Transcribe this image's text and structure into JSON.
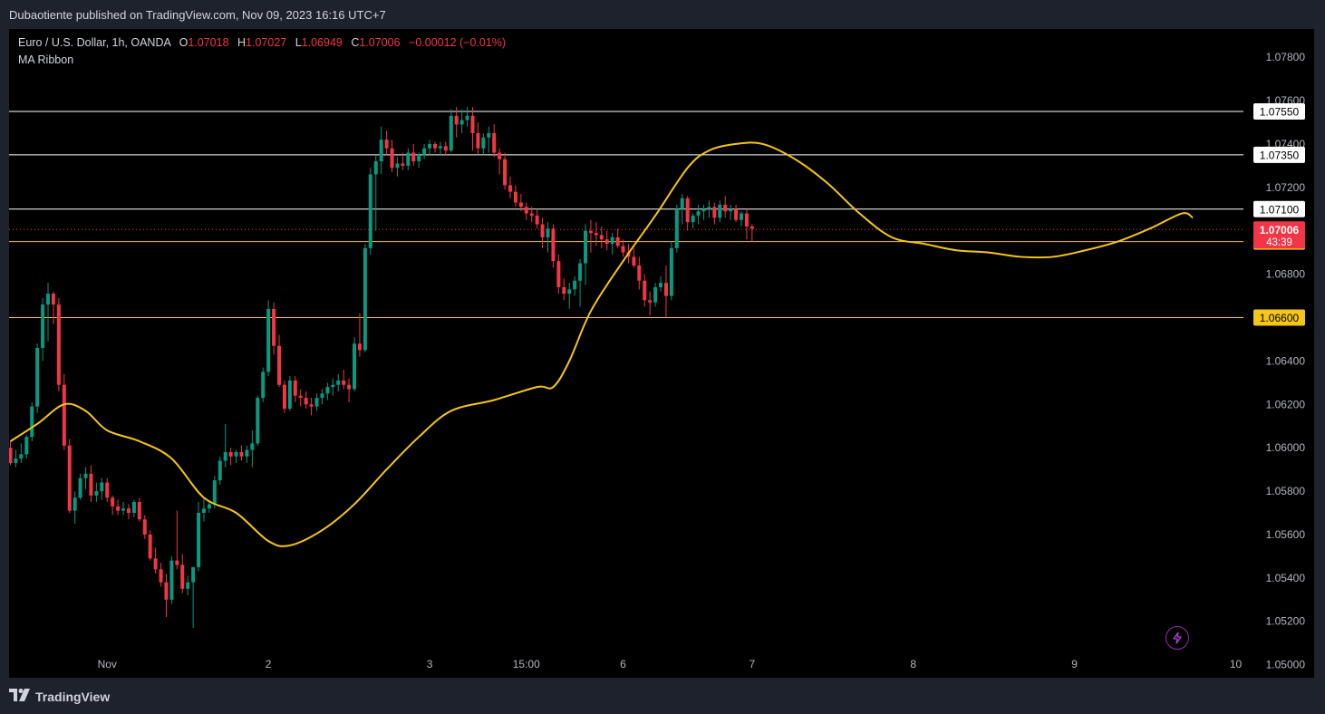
{
  "header": {
    "publisher": "Dubaotiente published on TradingView.com, Nov 09, 2023 16:16 UTC+7"
  },
  "legend": {
    "symbol": "Euro / U.S. Dollar, 1h, OANDA",
    "o_label": "O",
    "o_value": "1.07018",
    "h_label": "H",
    "h_value": "1.07027",
    "l_label": "L",
    "l_value": "1.06949",
    "c_label": "C",
    "c_value": "1.07006",
    "change": "−0.00012 (−0.01%)",
    "indicator": "MA Ribbon"
  },
  "footer": {
    "brand": "TradingView",
    "logo_icon": "tradingview-logo-icon",
    "flash_icon": "lightning-icon"
  },
  "colors": {
    "up": "#089981",
    "down": "#f23645",
    "ma": "#f5c518",
    "background": "#000000",
    "hline_white": "#ffffff",
    "hline_yellow": "#f5c518",
    "price": "#f23645"
  },
  "chart_data": {
    "type": "candlestick",
    "symbol": "EURUSD",
    "timeframe": "1h",
    "ylim": [
      1.0494,
      1.0793
    ],
    "y_ticks": [
      "1.07800",
      "1.07600",
      "1.07400",
      "1.07200",
      "1.07000",
      "1.06800",
      "1.06600",
      "1.06400",
      "1.06200",
      "1.06000",
      "1.05800",
      "1.05600",
      "1.05400",
      "1.05200",
      "1.05000"
    ],
    "x_ticks": [
      {
        "label": "Nov",
        "i": 18
      },
      {
        "label": "2",
        "i": 48
      },
      {
        "label": "3",
        "i": 78
      },
      {
        "label": "15:00",
        "i": 96
      },
      {
        "label": "6",
        "i": 114
      },
      {
        "label": "7",
        "i": 138
      },
      {
        "label": "8",
        "i": 168
      },
      {
        "label": "9",
        "i": 198
      },
      {
        "label": "10",
        "i": 228
      }
    ],
    "current_price": {
      "value": 1.07006,
      "label": "1.07006",
      "countdown": "43:39"
    },
    "horizontal_lines": [
      {
        "value": 1.0755,
        "label": "1.07550",
        "color": "white"
      },
      {
        "value": 1.0735,
        "label": "1.07350",
        "color": "white"
      },
      {
        "value": 1.071,
        "label": "1.07100",
        "color": "white"
      },
      {
        "value": 1.0695,
        "label": "1.06950",
        "color": "yellow"
      },
      {
        "value": 1.066,
        "label": "1.06600",
        "color": "yellow"
      }
    ],
    "ma_series": {
      "name": "MA Ribbon",
      "points": [
        [
          0,
          1.0603
        ],
        [
          5,
          1.0611
        ],
        [
          10,
          1.062
        ],
        [
          14,
          1.0617
        ],
        [
          18,
          1.0608
        ],
        [
          24,
          1.0603
        ],
        [
          30,
          1.0595
        ],
        [
          36,
          1.0577
        ],
        [
          42,
          1.057
        ],
        [
          48,
          1.0557
        ],
        [
          52,
          1.0555
        ],
        [
          58,
          1.0562
        ],
        [
          64,
          1.0574
        ],
        [
          70,
          1.059
        ],
        [
          76,
          1.0605
        ],
        [
          82,
          1.0617
        ],
        [
          90,
          1.0622
        ],
        [
          98,
          1.0628
        ],
        [
          101,
          1.0628
        ],
        [
          104,
          1.064
        ],
        [
          108,
          1.0663
        ],
        [
          114,
          1.0686
        ],
        [
          120,
          1.0707
        ],
        [
          126,
          1.0729
        ],
        [
          130,
          1.0737
        ],
        [
          135,
          1.074
        ],
        [
          140,
          1.074
        ],
        [
          146,
          1.0733
        ],
        [
          152,
          1.0722
        ],
        [
          158,
          1.0708
        ],
        [
          164,
          1.0697
        ],
        [
          170,
          1.0694
        ],
        [
          176,
          1.0691
        ],
        [
          182,
          1.069
        ],
        [
          188,
          1.0688
        ],
        [
          194,
          1.0688
        ],
        [
          200,
          1.0691
        ],
        [
          206,
          1.0695
        ],
        [
          212,
          1.0701
        ],
        [
          218,
          1.0708
        ],
        [
          220,
          1.0706
        ]
      ]
    },
    "candles": [
      [
        1.06,
        1.0603,
        1.0592,
        1.0593
      ],
      [
        1.0593,
        1.0599,
        1.0591,
        1.0595
      ],
      [
        1.0595,
        1.0602,
        1.0593,
        1.0597
      ],
      [
        1.0597,
        1.0606,
        1.0595,
        1.0605
      ],
      [
        1.0605,
        1.0621,
        1.0603,
        1.0619
      ],
      [
        1.0619,
        1.0648,
        1.0616,
        1.0646
      ],
      [
        1.0646,
        1.0669,
        1.064,
        1.0666
      ],
      [
        1.0666,
        1.0676,
        1.0649,
        1.0671
      ],
      [
        1.0671,
        1.0672,
        1.0657,
        1.0666
      ],
      [
        1.0666,
        1.0669,
        1.0626,
        1.0629
      ],
      [
        1.0629,
        1.0634,
        1.0599,
        1.0601
      ],
      [
        1.0601,
        1.0604,
        1.057,
        1.0571
      ],
      [
        1.0571,
        1.058,
        1.0565,
        1.0577
      ],
      [
        1.0577,
        1.0588,
        1.0576,
        1.0586
      ],
      [
        1.0586,
        1.0591,
        1.0581,
        1.0588
      ],
      [
        1.0588,
        1.0592,
        1.0575,
        1.0578
      ],
      [
        1.0578,
        1.0584,
        1.0575,
        1.058
      ],
      [
        1.058,
        1.0586,
        1.0576,
        1.0584
      ],
      [
        1.0584,
        1.0586,
        1.0575,
        1.0577
      ],
      [
        1.0577,
        1.0578,
        1.0569,
        1.0573
      ],
      [
        1.0573,
        1.0576,
        1.0569,
        1.0571
      ],
      [
        1.0571,
        1.0575,
        1.0569,
        1.0572
      ],
      [
        1.0572,
        1.0574,
        1.0567,
        1.057
      ],
      [
        1.057,
        1.0576,
        1.0568,
        1.0575
      ],
      [
        1.0575,
        1.0577,
        1.0566,
        1.0567
      ],
      [
        1.0567,
        1.0569,
        1.0558,
        1.056
      ],
      [
        1.056,
        1.0562,
        1.0548,
        1.0549
      ],
      [
        1.0549,
        1.0554,
        1.0542,
        1.0544
      ],
      [
        1.0544,
        1.0547,
        1.0536,
        1.0538
      ],
      [
        1.0538,
        1.0542,
        1.0522,
        1.053
      ],
      [
        1.053,
        1.055,
        1.0528,
        1.0548
      ],
      [
        1.0548,
        1.0571,
        1.0544,
        1.0546
      ],
      [
        1.0546,
        1.0551,
        1.0533,
        1.0535
      ],
      [
        1.0535,
        1.0541,
        1.0532,
        1.0538
      ],
      [
        1.0538,
        1.0544,
        1.0517,
        1.0545
      ],
      [
        1.0545,
        1.0575,
        1.0543,
        1.057
      ],
      [
        1.057,
        1.0577,
        1.0566,
        1.0572
      ],
      [
        1.0572,
        1.0576,
        1.057,
        1.0574
      ],
      [
        1.0574,
        1.0587,
        1.0572,
        1.0585
      ],
      [
        1.0585,
        1.0596,
        1.0583,
        1.0594
      ],
      [
        1.0594,
        1.0611,
        1.0591,
        1.0598
      ],
      [
        1.0598,
        1.06,
        1.0592,
        1.0596
      ],
      [
        1.0596,
        1.0599,
        1.0593,
        1.0598
      ],
      [
        1.0598,
        1.0601,
        1.0594,
        1.0596
      ],
      [
        1.0596,
        1.0601,
        1.0593,
        1.0599
      ],
      [
        1.0599,
        1.0608,
        1.0591,
        1.0602
      ],
      [
        1.0602,
        1.0624,
        1.0601,
        1.0623
      ],
      [
        1.0623,
        1.0637,
        1.0621,
        1.0635
      ],
      [
        1.0635,
        1.0668,
        1.0633,
        1.0664
      ],
      [
        1.0664,
        1.0667,
        1.0643,
        1.0647
      ],
      [
        1.0647,
        1.0652,
        1.0628,
        1.0629
      ],
      [
        1.0629,
        1.0631,
        1.0616,
        1.0618
      ],
      [
        1.0618,
        1.0633,
        1.0617,
        1.0631
      ],
      [
        1.0631,
        1.0633,
        1.0621,
        1.0624
      ],
      [
        1.0624,
        1.0627,
        1.0619,
        1.0623
      ],
      [
        1.0623,
        1.0626,
        1.0618,
        1.062
      ],
      [
        1.062,
        1.0623,
        1.0615,
        1.0619
      ],
      [
        1.0619,
        1.0625,
        1.0617,
        1.0623
      ],
      [
        1.0623,
        1.0627,
        1.062,
        1.0625
      ],
      [
        1.0625,
        1.063,
        1.0622,
        1.0628
      ],
      [
        1.0628,
        1.0632,
        1.0624,
        1.0629
      ],
      [
        1.0629,
        1.0634,
        1.0626,
        1.0631
      ],
      [
        1.0631,
        1.0636,
        1.0627,
        1.0629
      ],
      [
        1.0629,
        1.0632,
        1.0621,
        1.0627
      ],
      [
        1.0627,
        1.0651,
        1.0626,
        1.0648
      ],
      [
        1.0648,
        1.0662,
        1.0642,
        1.0645
      ],
      [
        1.0645,
        1.0694,
        1.0644,
        1.0692
      ],
      [
        1.0692,
        1.0729,
        1.0689,
        1.0726
      ],
      [
        1.0726,
        1.0735,
        1.07,
        1.0732
      ],
      [
        1.0732,
        1.0748,
        1.0726,
        1.0742
      ],
      [
        1.0742,
        1.0746,
        1.0735,
        1.0738
      ],
      [
        1.0738,
        1.0742,
        1.0727,
        1.0729
      ],
      [
        1.0729,
        1.0734,
        1.0725,
        1.0731
      ],
      [
        1.0731,
        1.0736,
        1.0728,
        1.073
      ],
      [
        1.073,
        1.0738,
        1.0728,
        1.0736
      ],
      [
        1.0736,
        1.074,
        1.073,
        1.0732
      ],
      [
        1.0732,
        1.0736,
        1.0729,
        1.0735
      ],
      [
        1.0735,
        1.074,
        1.0733,
        1.0738
      ],
      [
        1.0738,
        1.0742,
        1.0735,
        1.074
      ],
      [
        1.074,
        1.0741,
        1.0736,
        1.0738
      ],
      [
        1.0738,
        1.0741,
        1.0735,
        1.0739
      ],
      [
        1.0739,
        1.0741,
        1.0735,
        1.0737
      ],
      [
        1.0737,
        1.0756,
        1.0736,
        1.0753
      ],
      [
        1.0753,
        1.0757,
        1.0743,
        1.0749
      ],
      [
        1.0749,
        1.0756,
        1.0745,
        1.0751
      ],
      [
        1.0751,
        1.0757,
        1.0748,
        1.0753
      ],
      [
        1.0753,
        1.0757,
        1.0737,
        1.0745
      ],
      [
        1.0745,
        1.075,
        1.0735,
        1.0738
      ],
      [
        1.0738,
        1.0745,
        1.0735,
        1.0743
      ],
      [
        1.0743,
        1.0748,
        1.0736,
        1.0745
      ],
      [
        1.0745,
        1.0749,
        1.0734,
        1.0736
      ],
      [
        1.0736,
        1.0738,
        1.0726,
        1.0733
      ],
      [
        1.0733,
        1.0736,
        1.0719,
        1.0721
      ],
      [
        1.0721,
        1.0725,
        1.0715,
        1.0718
      ],
      [
        1.0718,
        1.0721,
        1.0711,
        1.0713
      ],
      [
        1.0713,
        1.0717,
        1.0709,
        1.0711
      ],
      [
        1.0711,
        1.0713,
        1.0705,
        1.0708
      ],
      [
        1.0708,
        1.0711,
        1.0704,
        1.0707
      ],
      [
        1.0707,
        1.071,
        1.0701,
        1.0703
      ],
      [
        1.0703,
        1.0706,
        1.0692,
        1.0697
      ],
      [
        1.0697,
        1.0704,
        1.069,
        1.0701
      ],
      [
        1.0701,
        1.0703,
        1.0683,
        1.0686
      ],
      [
        1.0686,
        1.0689,
        1.0671,
        1.0674
      ],
      [
        1.0674,
        1.0678,
        1.0668,
        1.0671
      ],
      [
        1.0671,
        1.0676,
        1.0664,
        1.0673
      ],
      [
        1.0673,
        1.0679,
        1.067,
        1.0677
      ],
      [
        1.0677,
        1.0687,
        1.0665,
        1.0685
      ],
      [
        1.0685,
        1.0703,
        1.0675,
        1.07
      ],
      [
        1.07,
        1.0705,
        1.069,
        1.0699
      ],
      [
        1.0699,
        1.0704,
        1.0693,
        1.0698
      ],
      [
        1.0698,
        1.0702,
        1.0692,
        1.0696
      ],
      [
        1.0696,
        1.07,
        1.0691,
        1.0694
      ],
      [
        1.0694,
        1.0699,
        1.0689,
        1.0697
      ],
      [
        1.0697,
        1.0701,
        1.0692,
        1.0693
      ],
      [
        1.0693,
        1.0696,
        1.0688,
        1.069
      ],
      [
        1.069,
        1.0694,
        1.0685,
        1.0688
      ],
      [
        1.0688,
        1.0692,
        1.0683,
        1.0684
      ],
      [
        1.0684,
        1.0688,
        1.0673,
        1.0677
      ],
      [
        1.0677,
        1.068,
        1.0665,
        1.0668
      ],
      [
        1.0668,
        1.0672,
        1.0661,
        1.0667
      ],
      [
        1.0667,
        1.0676,
        1.0665,
        1.0674
      ],
      [
        1.0674,
        1.0679,
        1.0672,
        1.0676
      ],
      [
        1.0676,
        1.0684,
        1.066,
        1.067
      ],
      [
        1.067,
        1.0695,
        1.0668,
        1.0692
      ],
      [
        1.0692,
        1.0712,
        1.069,
        1.071
      ],
      [
        1.071,
        1.0717,
        1.0703,
        1.0715
      ],
      [
        1.0715,
        1.0716,
        1.07,
        1.0704
      ],
      [
        1.0704,
        1.0708,
        1.0701,
        1.0707
      ],
      [
        1.0707,
        1.0712,
        1.0703,
        1.0709
      ],
      [
        1.0709,
        1.0712,
        1.0705,
        1.071
      ],
      [
        1.071,
        1.0714,
        1.0706,
        1.0711
      ],
      [
        1.0711,
        1.0713,
        1.0703,
        1.0706
      ],
      [
        1.0706,
        1.0714,
        1.0704,
        1.0712
      ],
      [
        1.0712,
        1.0716,
        1.0706,
        1.0709
      ],
      [
        1.0709,
        1.0712,
        1.0705,
        1.071
      ],
      [
        1.071,
        1.0712,
        1.0704,
        1.0705
      ],
      [
        1.0705,
        1.0709,
        1.0702,
        1.0708
      ],
      [
        1.0708,
        1.071,
        1.0696,
        1.0702
      ],
      [
        1.0702,
        1.0703,
        1.0695,
        1.0701
      ]
    ]
  }
}
